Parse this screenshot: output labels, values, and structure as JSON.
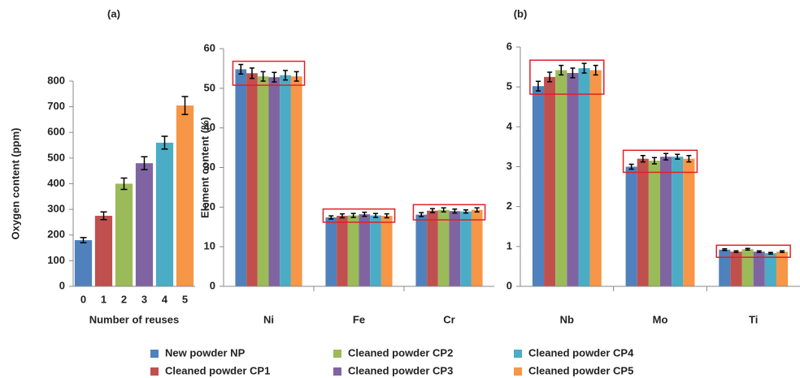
{
  "chart_data": [
    {
      "type": "bar",
      "title": "(a)",
      "y_label": "Oxygen content (ppm)",
      "x_label": "Number of reuses",
      "categories": [
        "0",
        "1",
        "2",
        "3",
        "4",
        "5"
      ],
      "values": [
        180,
        275,
        400,
        480,
        560,
        705
      ],
      "errors": [
        10,
        15,
        22,
        25,
        25,
        35
      ],
      "colors": [
        "#4f81bd",
        "#c0504d",
        "#9bbb59",
        "#8064a2",
        "#4bacc6",
        "#f79646"
      ],
      "ylim": [
        0,
        800
      ],
      "yticks": [
        0,
        100,
        200,
        300,
        400,
        500,
        600,
        700,
        800
      ]
    },
    {
      "type": "grouped-bar",
      "y_label": "Element content (%)",
      "categories": [
        "Ni",
        "Fe",
        "Cr"
      ],
      "series": [
        {
          "name": "New powder NP",
          "color": "#4f81bd",
          "values": [
            54.8,
            17.4,
            18.1
          ],
          "errors": [
            1.2,
            0.4,
            0.5
          ]
        },
        {
          "name": "Cleaned powder CP1",
          "color": "#c0504d",
          "values": [
            53.8,
            17.8,
            19.1
          ],
          "errors": [
            1.3,
            0.5,
            0.5
          ]
        },
        {
          "name": "Cleaned powder CP2",
          "color": "#9bbb59",
          "values": [
            53.0,
            17.9,
            19.3
          ],
          "errors": [
            1.2,
            0.5,
            0.5
          ]
        },
        {
          "name": "Cleaned powder CP3",
          "color": "#8064a2",
          "values": [
            52.8,
            18.2,
            19.0
          ],
          "errors": [
            1.2,
            0.5,
            0.5
          ]
        },
        {
          "name": "Cleaned powder CP4",
          "color": "#4bacc6",
          "values": [
            53.3,
            17.9,
            18.9
          ],
          "errors": [
            1.2,
            0.5,
            0.4
          ]
        },
        {
          "name": "Cleaned powder CP5",
          "color": "#f79646",
          "values": [
            53.0,
            17.8,
            19.3
          ],
          "errors": [
            1.2,
            0.5,
            0.5
          ]
        }
      ],
      "ylim": [
        0,
        60
      ],
      "yticks": [
        0,
        10,
        20,
        30,
        40,
        50,
        60
      ]
    },
    {
      "type": "grouped-bar",
      "title": "(b)",
      "categories": [
        "Nb",
        "Mo",
        "Ti"
      ],
      "series": [
        {
          "color": "#4f81bd",
          "values": [
            5.02,
            3.0,
            0.92
          ],
          "errors": [
            0.12,
            0.06,
            0.02
          ]
        },
        {
          "color": "#c0504d",
          "values": [
            5.25,
            3.2,
            0.87
          ],
          "errors": [
            0.12,
            0.08,
            0.02
          ]
        },
        {
          "color": "#9bbb59",
          "values": [
            5.42,
            3.15,
            0.93
          ],
          "errors": [
            0.12,
            0.08,
            0.02
          ]
        },
        {
          "color": "#8064a2",
          "values": [
            5.35,
            3.25,
            0.87
          ],
          "errors": [
            0.12,
            0.08,
            0.02
          ]
        },
        {
          "color": "#4bacc6",
          "values": [
            5.47,
            3.25,
            0.83
          ],
          "errors": [
            0.12,
            0.06,
            0.02
          ]
        },
        {
          "color": "#f79646",
          "values": [
            5.42,
            3.2,
            0.87
          ],
          "errors": [
            0.12,
            0.08,
            0.02
          ]
        }
      ],
      "ylim": [
        0,
        6
      ],
      "yticks": [
        0,
        1,
        2,
        3,
        4,
        5,
        6
      ]
    }
  ]
}
